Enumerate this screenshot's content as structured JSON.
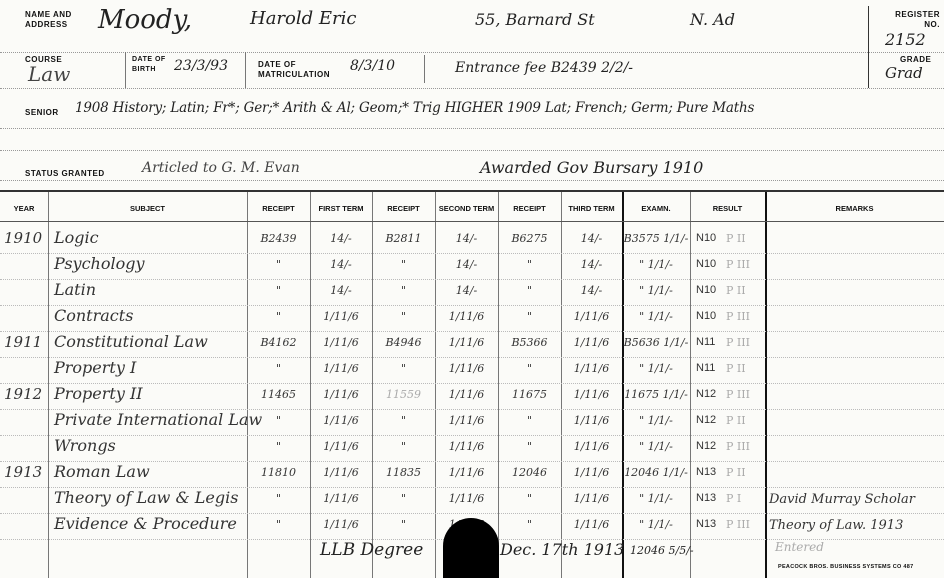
{
  "header": {
    "name_label": "Name and Address",
    "surname": "Moody,",
    "given_names": "Harold Eric",
    "address": "55, Barnard St",
    "address_suffix": "N. Ad",
    "register_label": "Register No.",
    "register_no": "2152"
  },
  "course": {
    "course_label": "Course",
    "course": "Law",
    "dob_label": "Date of Birth",
    "dob": "23/3/93",
    "matric_label": "Date of Matriculation",
    "matric": "8/3/10",
    "entrance": "Entrance fee B2439 2/2/-",
    "grade_label": "Grade",
    "grade": "Grad"
  },
  "senior": {
    "label": "Senior",
    "text": "1908 History; Latin; Fr*; Ger;* Arith & Al; Geom;* Trig HIGHER 1909 Lat; French; Germ; Pure Maths"
  },
  "status": {
    "label": "Status Granted",
    "articled": "Articled to G. M. Evan",
    "bursary": "Awarded Gov Bursary 1910"
  },
  "table": {
    "headers": [
      "Year",
      "Subject",
      "Receipt",
      "First Term",
      "Receipt",
      "Second Term",
      "Receipt",
      "Third Term",
      "Examn.",
      "Result",
      "Remarks"
    ],
    "rows": [
      {
        "year": "1910",
        "subject": "Logic",
        "r1": "B2439",
        "t1": "14/-",
        "r2": "B2811",
        "t2": "14/-",
        "r3": "B6275",
        "t3": "14/-",
        "exam": "B3575 1/1/-",
        "result": "N10",
        "pass": "P II",
        "remarks": ""
      },
      {
        "year": "",
        "subject": "Psychology",
        "r1": "\"",
        "t1": "14/-",
        "r2": "\"",
        "t2": "14/-",
        "r3": "\"",
        "t3": "14/-",
        "exam": "\" 1/1/-",
        "result": "N10",
        "pass": "P III",
        "remarks": ""
      },
      {
        "year": "",
        "subject": "Latin",
        "r1": "\"",
        "t1": "14/-",
        "r2": "\"",
        "t2": "14/-",
        "r3": "\"",
        "t3": "14/-",
        "exam": "\" 1/1/-",
        "result": "N10",
        "pass": "P II",
        "remarks": ""
      },
      {
        "year": "",
        "subject": "Contracts",
        "r1": "\"",
        "t1": "1/11/6",
        "r2": "\"",
        "t2": "1/11/6",
        "r3": "\"",
        "t3": "1/11/6",
        "exam": "\" 1/1/-",
        "result": "N10",
        "pass": "P III",
        "remarks": ""
      },
      {
        "year": "1911",
        "subject": "Constitutional Law",
        "r1": "B4162",
        "t1": "1/11/6",
        "r2": "B4946",
        "t2": "1/11/6",
        "r3": "B5366",
        "t3": "1/11/6",
        "exam": "B5636 1/1/-",
        "result": "N11",
        "pass": "P III",
        "remarks": ""
      },
      {
        "year": "",
        "subject": "Property I",
        "r1": "\"",
        "t1": "1/11/6",
        "r2": "\"",
        "t2": "1/11/6",
        "r3": "\"",
        "t3": "1/11/6",
        "exam": "\" 1/1/-",
        "result": "N11",
        "pass": "P II",
        "remarks": ""
      },
      {
        "year": "1912",
        "subject": "Property II",
        "r1": "11465",
        "t1": "1/11/6",
        "r2": "11559",
        "t2": "1/11/6",
        "r3": "11675",
        "t3": "1/11/6",
        "exam": "11675 1/1/-",
        "result": "N12",
        "pass": "P III",
        "remarks": ""
      },
      {
        "year": "",
        "subject": "Private International Law",
        "r1": "\"",
        "t1": "1/11/6",
        "r2": "\"",
        "t2": "1/11/6",
        "r3": "\"",
        "t3": "1/11/6",
        "exam": "\" 1/1/-",
        "result": "N12",
        "pass": "P II",
        "remarks": ""
      },
      {
        "year": "",
        "subject": "Wrongs",
        "r1": "\"",
        "t1": "1/11/6",
        "r2": "\"",
        "t2": "1/11/6",
        "r3": "\"",
        "t3": "1/11/6",
        "exam": "\" 1/1/-",
        "result": "N12",
        "pass": "P III",
        "remarks": ""
      },
      {
        "year": "1913",
        "subject": "Roman Law",
        "r1": "11810",
        "t1": "1/11/6",
        "r2": "11835",
        "t2": "1/11/6",
        "r3": "12046",
        "t3": "1/11/6",
        "exam": "12046 1/1/-",
        "result": "N13",
        "pass": "P II",
        "remarks": ""
      },
      {
        "year": "",
        "subject": "Theory of Law & Legis",
        "r1": "\"",
        "t1": "1/11/6",
        "r2": "\"",
        "t2": "1/11/6",
        "r3": "\"",
        "t3": "1/11/6",
        "exam": "\" 1/1/-",
        "result": "N13",
        "pass": "P I",
        "remarks": "David Murray Scholar"
      },
      {
        "year": "",
        "subject": "Evidence & Procedure",
        "r1": "\"",
        "t1": "1/11/6",
        "r2": "\"",
        "t2": "1/11/6",
        "r3": "\"",
        "t3": "1/11/6",
        "exam": "\" 1/1/-",
        "result": "N13",
        "pass": "P III",
        "remarks": "Theory of Law. 1913"
      }
    ],
    "degree": "LLB Degree",
    "degree_date": "Dec. 17th 1913",
    "degree_exam": "12046 5/5/-",
    "remarks_extra": "Entered"
  },
  "footer": {
    "printer": "Peacock Bros. Business Systems Co 487"
  }
}
